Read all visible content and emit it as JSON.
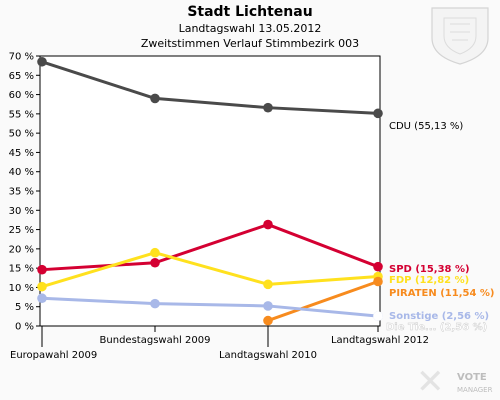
{
  "header": {
    "title": "Stadt Lichtenau",
    "subtitle": "Landtagswahl 13.05.2012",
    "subtitle2": "Zweitstimmen Verlauf Stimmbezirk 003"
  },
  "logo_text": "VOTE MANAGER",
  "chart_data": {
    "type": "line",
    "categories": [
      "Europawahl 2009",
      "Bundestagswahl 2009",
      "Landtagswahl 2010",
      "Landtagswahl 2012"
    ],
    "ylim": [
      0,
      70
    ],
    "ytick_labels": [
      "0 %",
      "5 %",
      "10 %",
      "15 %",
      "20 %",
      "25 %",
      "30 %",
      "35 %",
      "40 %",
      "45 %",
      "50 %",
      "55 %",
      "60 %",
      "65 %",
      "70 %"
    ],
    "grid": false,
    "series": [
      {
        "name": "CDU",
        "color": "#4a4a4a",
        "values": [
          68.5,
          59.0,
          56.6,
          55.13
        ],
        "end_label": "CDU (55,13 %)"
      },
      {
        "name": "SPD",
        "color": "#d40032",
        "values": [
          14.6,
          16.4,
          26.3,
          15.38
        ],
        "end_label": "SPD (15,38 %)"
      },
      {
        "name": "FDP",
        "color": "#ffe11e",
        "values": [
          10.2,
          19.0,
          10.8,
          12.82
        ],
        "end_label": "FDP (12,82 %)"
      },
      {
        "name": "PIRATEN",
        "color": "#f78b1e",
        "values": [
          null,
          null,
          1.4,
          11.54
        ],
        "end_label": "PIRATEN (11,54 %)"
      },
      {
        "name": "Sonstige",
        "color": "#a8b8e8",
        "values": [
          7.2,
          5.8,
          5.2,
          2.56
        ],
        "end_label": "Sonstige (2,56 %)"
      },
      {
        "name": "Die Tie...",
        "color": "#ffffff",
        "values": [
          null,
          null,
          null,
          2.56
        ],
        "end_label": "Die Tie... (2,56 %)"
      }
    ]
  }
}
